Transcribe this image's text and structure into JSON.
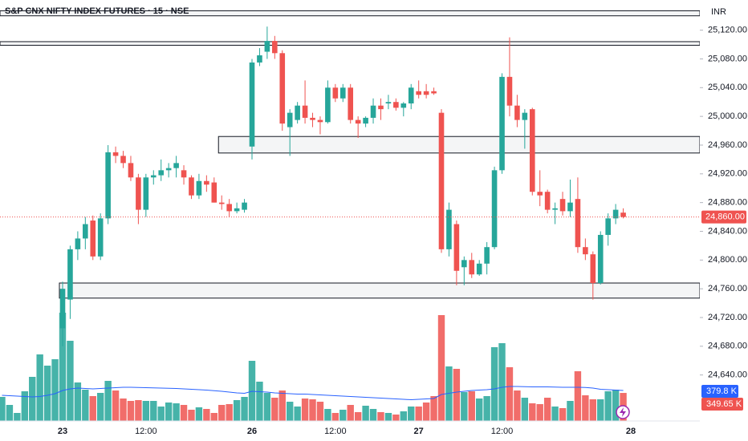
{
  "chart_data": {
    "type": "candlestick",
    "title": "S&P CNX NIFTY INDEX FUTURES · 15 · NSE",
    "currency": "INR",
    "categories": [
      null,
      null,
      null,
      null,
      null,
      null,
      null,
      null,
      "23",
      null,
      null,
      null,
      null,
      null,
      null,
      null,
      null,
      null,
      null,
      "12:00",
      null,
      null,
      null,
      null,
      null,
      null,
      null,
      null,
      null,
      null,
      null,
      null,
      null,
      "26",
      null,
      null,
      null,
      null,
      null,
      null,
      null,
      null,
      null,
      null,
      "12:00",
      null,
      null,
      null,
      null,
      null,
      null,
      null,
      null,
      null,
      null,
      "27",
      null,
      null,
      null,
      null,
      null,
      null,
      null,
      null,
      null,
      null,
      "12:00",
      null,
      null,
      null,
      null,
      null,
      null,
      null,
      null,
      null,
      null,
      null,
      null,
      null,
      null,
      null,
      null,
      "28"
    ],
    "open": [
      null,
      null,
      null,
      null,
      null,
      null,
      null,
      null,
      24705,
      24745,
      24815,
      24830,
      24855,
      24805,
      24858,
      24950,
      24945,
      24935,
      24915,
      24870,
      24915,
      24918,
      24925,
      24928,
      24925,
      24915,
      24890,
      24910,
      24908,
      24880,
      24878,
      24868,
      24870,
      24958,
      25075,
      25090,
      25105,
      25088,
      24985,
      24995,
      25015,
      24998,
      24995,
      24992,
      25040,
      25025,
      25040,
      24995,
      24990,
      24998,
      25015,
      25018,
      25020,
      25012,
      25018,
      25035,
      25035,
      25035,
      25005,
      24815,
      24850,
      24790,
      24800,
      24780,
      24795,
      24818,
      24925,
      25055,
      25015,
      24995,
      25010,
      24895,
      24895,
      24870,
      24885,
      24868,
      24885,
      24818,
      24808,
      24768,
      24835,
      24858,
      24866,
      null
    ],
    "high": [
      null,
      null,
      null,
      null,
      null,
      null,
      null,
      null,
      24770,
      24820,
      24840,
      24860,
      24862,
      24865,
      24960,
      24958,
      24952,
      24945,
      24920,
      24920,
      24925,
      24940,
      24935,
      24945,
      24932,
      24918,
      24920,
      24918,
      24915,
      24890,
      24885,
      24880,
      24885,
      25080,
      25095,
      25125,
      25112,
      25092,
      25010,
      25020,
      25050,
      25005,
      25000,
      25050,
      25045,
      25045,
      25045,
      25000,
      25000,
      25025,
      25025,
      25030,
      25025,
      25020,
      25045,
      25050,
      25045,
      25040,
      25010,
      24880,
      24855,
      24805,
      24810,
      24800,
      24825,
      24930,
      25060,
      25110,
      25030,
      25010,
      25012,
      24925,
      24898,
      24880,
      24895,
      24912,
      24915,
      24830,
      24812,
      24840,
      24865,
      24878,
      24872,
      null
    ],
    "low": [
      null,
      null,
      null,
      null,
      null,
      null,
      null,
      null,
      24680,
      24718,
      24800,
      24815,
      24800,
      24800,
      24850,
      24935,
      24928,
      24910,
      24850,
      24860,
      24905,
      24910,
      24915,
      24915,
      24905,
      24885,
      24885,
      24895,
      24880,
      24870,
      24860,
      24865,
      24866,
      24940,
      25070,
      25080,
      25080,
      24980,
      24945,
      24990,
      24990,
      24985,
      24975,
      24990,
      25020,
      25020,
      24990,
      24970,
      24985,
      24990,
      24995,
      25010,
      25008,
      25000,
      25010,
      25025,
      25025,
      25030,
      24810,
      24805,
      24765,
      24765,
      24775,
      24778,
      24780,
      24815,
      24920,
      25000,
      24985,
      24955,
      24890,
      24875,
      24865,
      24850,
      24862,
      24860,
      24810,
      24800,
      24745,
      24766,
      24820,
      24850,
      24858,
      null
    ],
    "close": [
      null,
      null,
      null,
      null,
      null,
      null,
      null,
      null,
      24760,
      24815,
      24830,
      24850,
      24805,
      24858,
      24950,
      24945,
      24935,
      24915,
      24870,
      24915,
      24918,
      24925,
      24928,
      24935,
      24915,
      24890,
      24910,
      24905,
      24880,
      24878,
      24868,
      24872,
      24880,
      25075,
      25085,
      25105,
      25088,
      24990,
      25005,
      25015,
      24998,
      24995,
      24992,
      25040,
      25025,
      25040,
      24995,
      24990,
      24998,
      25015,
      25010,
      25020,
      25012,
      25018,
      25040,
      25030,
      25030,
      25032,
      24815,
      24870,
      24785,
      24800,
      24780,
      24795,
      24818,
      24925,
      25055,
      25015,
      24995,
      25005,
      24895,
      24890,
      24870,
      24872,
      24868,
      24880,
      24818,
      24808,
      24768,
      24835,
      24858,
      24870,
      24860,
      null
    ],
    "volume": [
      300,
      200,
      100,
      370,
      550,
      830,
      690,
      770,
      1350,
      1000,
      480,
      390,
      310,
      350,
      500,
      380,
      280,
      250,
      260,
      250,
      250,
      180,
      230,
      220,
      200,
      140,
      170,
      150,
      100,
      200,
      210,
      260,
      300,
      750,
      490,
      350,
      290,
      380,
      240,
      180,
      280,
      270,
      240,
      150,
      100,
      140,
      200,
      110,
      190,
      150,
      110,
      100,
      80,
      120,
      180,
      180,
      230,
      310,
      1320,
      680,
      650,
      360,
      370,
      280,
      310,
      920,
      970,
      670,
      380,
      290,
      220,
      210,
      290,
      180,
      160,
      250,
      620,
      320,
      270,
      270,
      370,
      390,
      349.65,
      null
    ],
    "volume_ma": [
      320,
      315,
      310,
      305,
      300,
      305,
      320,
      340,
      380,
      400,
      410,
      405,
      400,
      405,
      410,
      415,
      420,
      420,
      418,
      415,
      412,
      410,
      408,
      405,
      400,
      395,
      390,
      385,
      378,
      370,
      360,
      350,
      345,
      370,
      365,
      360,
      350,
      345,
      340,
      335,
      335,
      330,
      325,
      320,
      315,
      310,
      305,
      300,
      295,
      290,
      285,
      280,
      275,
      270,
      265,
      270,
      275,
      280,
      330,
      345,
      360,
      370,
      380,
      385,
      390,
      400,
      420,
      430,
      430,
      428,
      425,
      425,
      425,
      422,
      420,
      420,
      420,
      418,
      410,
      395,
      390,
      385,
      379.8,
      null
    ],
    "volume_label": "349.65 K",
    "volume_ma_label": "379.8 K",
    "up_color": "#26a69a",
    "down_color": "#ef5350",
    "ma_color": "#2962ff",
    "last_price": {
      "value": 24860,
      "label": "24,860.00"
    },
    "levels": [
      {
        "from": 25140,
        "to": 25147,
        "start": 0
      },
      {
        "from": 25099,
        "to": 25104,
        "start": 0
      },
      {
        "from": 24949,
        "to": 24972,
        "start": 29
      },
      {
        "from": 24747,
        "to": 24768,
        "start": 8
      }
    ],
    "ylim": [
      24576,
      25162
    ],
    "y2lim": [
      0,
      5250
    ],
    "yticks": [
      {
        "value": 24640,
        "label": "24,640.00"
      },
      {
        "value": 24680,
        "label": "24,680.00"
      },
      {
        "value": 24720,
        "label": "24,720.00"
      },
      {
        "value": 24760,
        "label": "24,760.00"
      },
      {
        "value": 24800,
        "label": "24,800.00"
      },
      {
        "value": 24840,
        "label": "24,840.00"
      },
      {
        "value": 24880,
        "label": "24,880.00"
      },
      {
        "value": 24920,
        "label": "24,920.00"
      },
      {
        "value": 24960,
        "label": "24,960.00"
      },
      {
        "value": 25000,
        "label": "25,000.00"
      },
      {
        "value": 25040,
        "label": "25,040.00"
      },
      {
        "value": 25080,
        "label": "25,080.00"
      },
      {
        "value": 25120,
        "label": "25,120.00"
      }
    ]
  }
}
